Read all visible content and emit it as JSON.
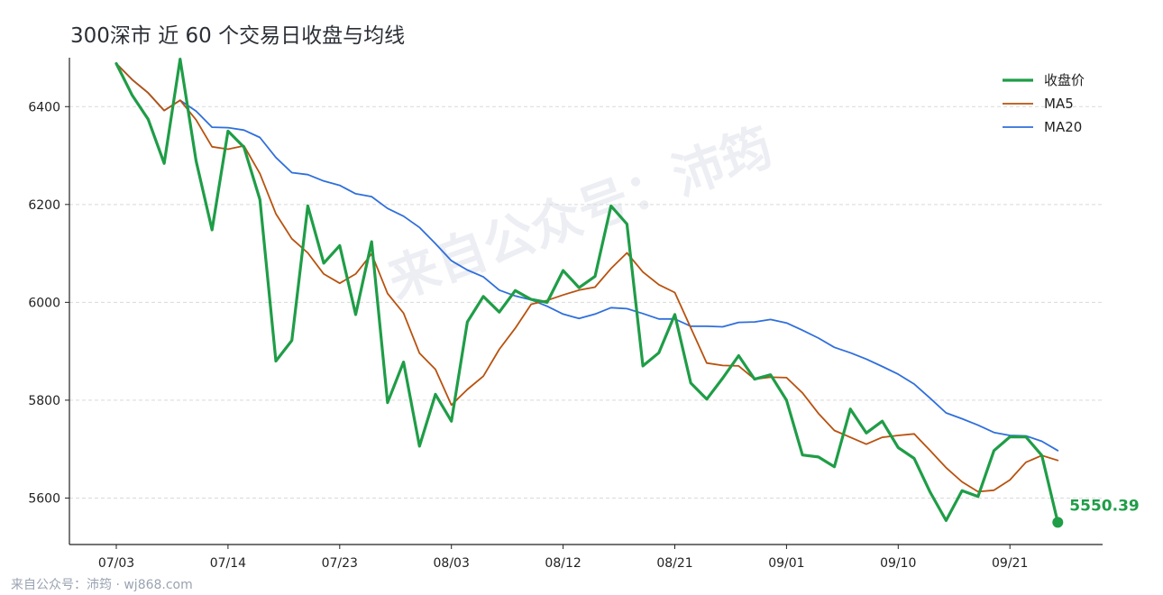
{
  "title": "300深市 近 60 个交易日收盘与均线",
  "footer": "来自公众号：沛筠 · wj868.com",
  "watermark": "来自公众号：沛筠",
  "colors": {
    "close": "#1f9d47",
    "ma5": "#b8520e",
    "ma20": "#2f6fdc",
    "grid": "#d9d9d9"
  },
  "chart_data": {
    "type": "line",
    "xlabel": "",
    "ylabel": "",
    "ylim": [
      5505,
      6500
    ],
    "yticks": [
      5600,
      5800,
      6000,
      6200,
      6400
    ],
    "xticks": [
      {
        "index": 0,
        "label": "07/03"
      },
      {
        "index": 7,
        "label": "07/14"
      },
      {
        "index": 14,
        "label": "07/23"
      },
      {
        "index": 21,
        "label": "08/03"
      },
      {
        "index": 28,
        "label": "08/12"
      },
      {
        "index": 35,
        "label": "08/21"
      },
      {
        "index": 42,
        "label": "09/01"
      },
      {
        "index": 49,
        "label": "09/10"
      },
      {
        "index": 56,
        "label": "09/21"
      }
    ],
    "grid": "horizontal dashed",
    "legend_position": "top-right",
    "end_label": "5550.39",
    "series": [
      {
        "name": "收盘价",
        "key": "close",
        "values": [
          6488,
          6423,
          6374,
          6284,
          6497,
          6289,
          6148,
          6350,
          6317,
          6210,
          5880,
          5922,
          6197,
          6080,
          6116,
          5975,
          6124,
          5795,
          5878,
          5706,
          5812,
          5757,
          5960,
          6012,
          5980,
          6024,
          6006,
          6000,
          6065,
          6030,
          6053,
          6197,
          6160,
          5870,
          5897,
          5975,
          5835,
          5802,
          5845,
          5891,
          5843,
          5852,
          5800,
          5688,
          5684,
          5664,
          5782,
          5733,
          5757,
          5703,
          5681,
          5612,
          5554,
          5615,
          5603,
          5697,
          5725,
          5725,
          5687,
          5550.39
        ]
      },
      {
        "name": "MA5",
        "key": "ma5",
        "values": [
          6488,
          6455,
          6428,
          6392,
          6413,
          6373,
          6318,
          6313,
          6320,
          6263,
          6181,
          6130,
          6101,
          6058,
          6039,
          6058,
          6099,
          6018,
          5978,
          5896,
          5863,
          5790,
          5822,
          5849,
          5904,
          5947,
          5996,
          6004,
          6015,
          6025,
          6031,
          6069,
          6101,
          6062,
          6036,
          6020,
          5948,
          5876,
          5871,
          5870,
          5843,
          5847,
          5846,
          5815,
          5773,
          5738,
          5724,
          5710,
          5724,
          5728,
          5731,
          5697,
          5662,
          5633,
          5613,
          5616,
          5637,
          5673,
          5687,
          5677
        ]
      },
      {
        "name": "MA20",
        "key": "ma20",
        "values": [
          6488,
          6455,
          6428,
          6392,
          6413,
          6391,
          6358,
          6357,
          6352,
          6337,
          6296,
          6265,
          6261,
          6248,
          6239,
          6222,
          6216,
          6192,
          6176,
          6153,
          6120,
          6085,
          6066,
          6052,
          6025,
          6013,
          6005,
          5992,
          5976,
          5967,
          5976,
          5989,
          5987,
          5977,
          5966,
          5966,
          5951,
          5951,
          5950,
          5959,
          5960,
          5965,
          5958,
          5943,
          5927,
          5908,
          5897,
          5884,
          5869,
          5853,
          5833,
          5804,
          5774,
          5762,
          5749,
          5734,
          5728,
          5727,
          5716,
          5697
        ]
      }
    ]
  }
}
